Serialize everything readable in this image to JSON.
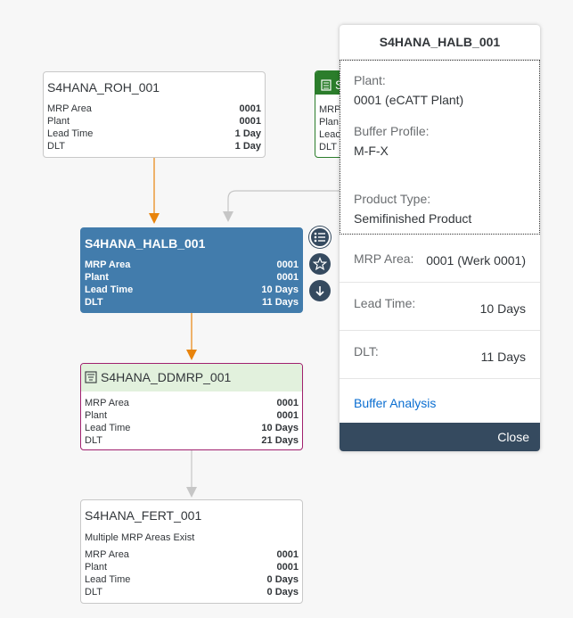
{
  "nodes": {
    "roh": {
      "title": "S4HANA_ROH_001",
      "rows": [
        {
          "label": "MRP Area",
          "value": "0001"
        },
        {
          "label": "Plant",
          "value": "0001"
        },
        {
          "label": "Lead Time",
          "value": "1 Day"
        },
        {
          "label": "DLT",
          "value": "1 Day"
        }
      ]
    },
    "halb": {
      "title": "S4HANA_HALB_001",
      "rows": [
        {
          "label": "MRP Area",
          "value": "0001"
        },
        {
          "label": "Plant",
          "value": "0001"
        },
        {
          "label": "Lead Time",
          "value": "10 Days"
        },
        {
          "label": "DLT",
          "value": "11 Days"
        }
      ]
    },
    "ddmrp": {
      "title": "S4HANA_DDMRP_001",
      "rows": [
        {
          "label": "MRP Area",
          "value": "0001"
        },
        {
          "label": "Plant",
          "value": "0001"
        },
        {
          "label": "Lead Time",
          "value": "10 Days"
        },
        {
          "label": "DLT",
          "value": "21 Days"
        }
      ]
    },
    "fert": {
      "title": "S4HANA_FERT_001",
      "note": "Multiple MRP Areas Exist",
      "rows": [
        {
          "label": "MRP Area",
          "value": "0001"
        },
        {
          "label": "Plant",
          "value": "0001"
        },
        {
          "label": "Lead Time",
          "value": "0 Days"
        },
        {
          "label": "DLT",
          "value": "0 Days"
        }
      ]
    },
    "partial": {
      "title_fragment": "S",
      "row_fragments": [
        "MRP",
        "Plan",
        "Leac",
        "DLT"
      ]
    }
  },
  "popover": {
    "title": "S4HANA_HALB_001",
    "plant_label": "Plant:",
    "plant_value": "0001 (eCATT Plant)",
    "buffer_profile_label": "Buffer Profile:",
    "buffer_profile_value": "M-F-X",
    "product_type_label": "Product Type:",
    "product_type_value": "Semifinished Product",
    "mrp_area_label": "MRP Area:",
    "mrp_area_value": "0001 (Werk 0001)",
    "lead_time_label": "Lead Time:",
    "lead_time_value": "10 Days",
    "dlt_label": "DLT:",
    "dlt_value": "11 Days",
    "link": "Buffer Analysis",
    "close": "Close"
  },
  "icons": {
    "details": "list-icon",
    "favorite": "star-icon",
    "expand": "arrow-down-icon",
    "buffer": "buffer-icon"
  },
  "colors": {
    "selected": "#427cac",
    "edge_critical": "#e8840c",
    "edge_normal": "#c6c6c6",
    "buffer_border": "#a0206e",
    "buffer_header": "#e2f1dd",
    "footer": "#354a5f",
    "link": "#0a6ed1"
  }
}
